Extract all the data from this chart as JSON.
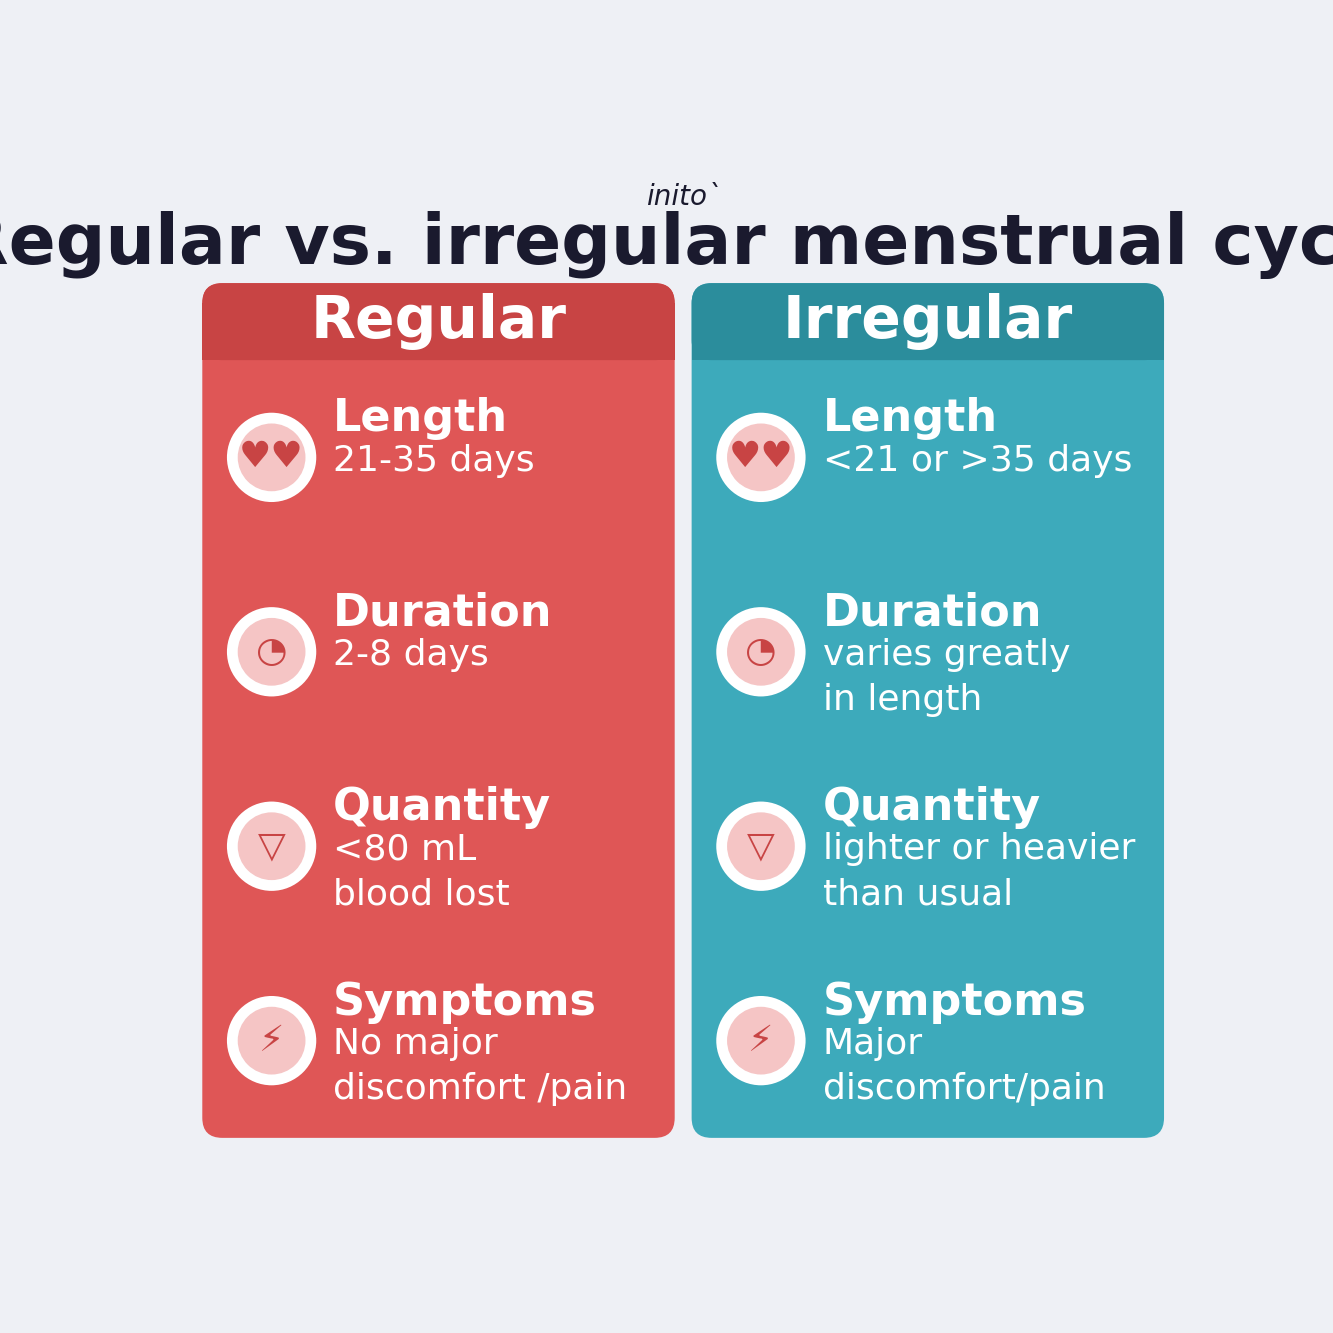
{
  "bg_color": "#eef0f5",
  "title": "Regular vs. irregular menstrual cycle",
  "brand": "initoˋ",
  "title_color": "#1a1a2e",
  "brand_color": "#1a1a2e",
  "left_panel": {
    "header": "Regular",
    "header_bg": "#c84444",
    "panel_bg": "#df5656",
    "text_color": "#ffffff",
    "items": [
      {
        "label": "Length",
        "desc": "21-35 days"
      },
      {
        "label": "Duration",
        "desc": "2-8 days"
      },
      {
        "label": "Quantity",
        "desc": "<80 mL\nblood lost"
      },
      {
        "label": "Symptoms",
        "desc": "No major\ndiscomfort /pain"
      }
    ]
  },
  "right_panel": {
    "header": "Irregular",
    "header_bg": "#2b8d9c",
    "panel_bg": "#3daabb",
    "text_color": "#ffffff",
    "items": [
      {
        "label": "Length",
        "desc": "<21 or >35 days"
      },
      {
        "label": "Duration",
        "desc": "varies greatly\nin length"
      },
      {
        "label": "Quantity",
        "desc": "lighter or heavier\nthan usual"
      },
      {
        "label": "Symptoms",
        "desc": "Major\ndiscomfort/pain"
      }
    ]
  }
}
